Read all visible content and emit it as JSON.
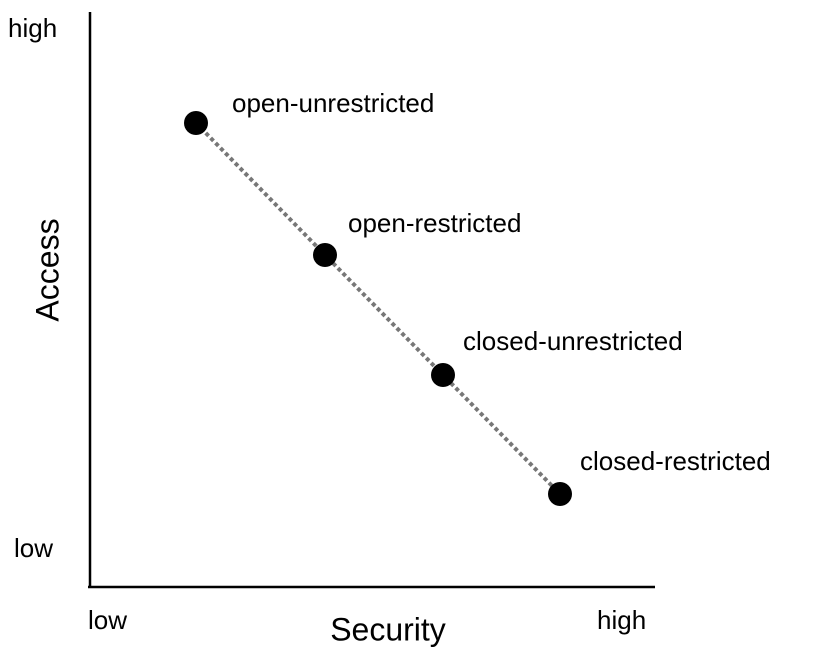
{
  "y_axis": {
    "label": "Access",
    "low": "low",
    "high": "high"
  },
  "x_axis": {
    "label": "Security",
    "low": "low",
    "high": "high"
  },
  "nodes": [
    {
      "label": "open-unrestricted"
    },
    {
      "label": "open-restricted"
    },
    {
      "label": "closed-unrestricted"
    },
    {
      "label": "closed-restricted"
    }
  ]
}
